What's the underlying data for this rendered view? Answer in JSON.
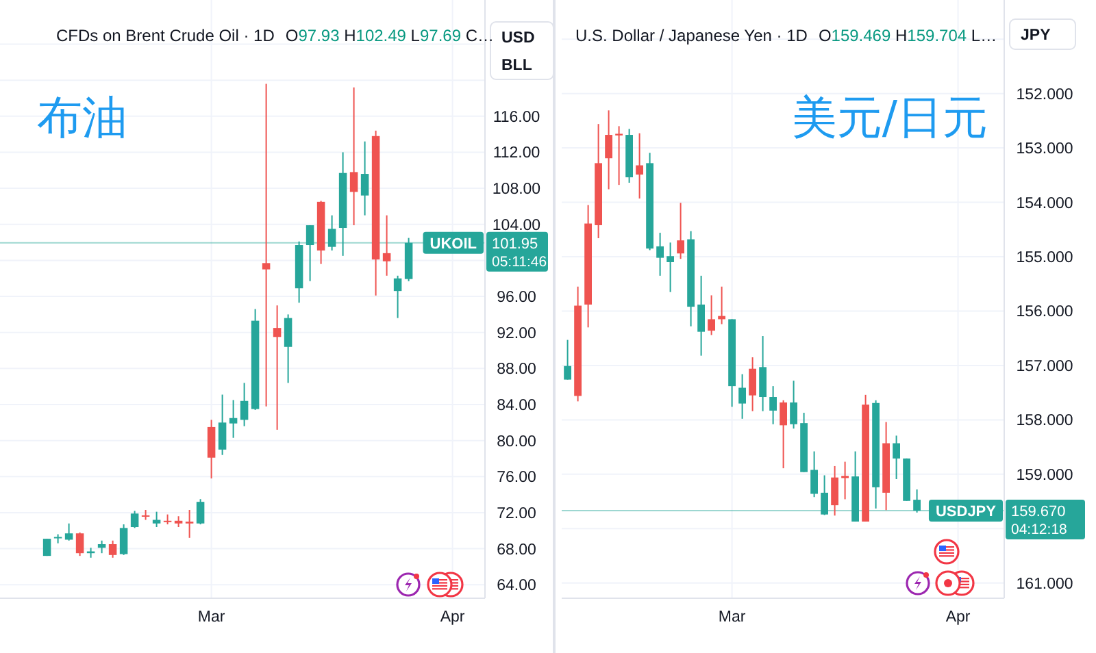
{
  "chart_data": [
    {
      "type": "candlestick",
      "title": "布油",
      "subtitle": "CFDs on Brent Crude Oil · 1D",
      "ylabel": "USD\nBLL",
      "annotations": [
        "O97.93 H102.49 L97.69 C…",
        "101.95",
        "05:11:46"
      ],
      "categories": [
        null,
        null,
        null,
        null,
        null,
        null,
        null,
        null,
        null,
        null,
        null,
        null,
        null,
        null,
        null,
        "Mar",
        null,
        null,
        null,
        null,
        null,
        null,
        null,
        null,
        null,
        null,
        null,
        null,
        null,
        null,
        null,
        null,
        null,
        null,
        null,
        null,
        null,
        "Apr",
        null,
        null
      ],
      "ohlc": [
        [
          67.2,
          69.1,
          67.2,
          69.1
        ],
        [
          69.2,
          69.6,
          68.6,
          69.3
        ],
        [
          69.0,
          70.8,
          68.9,
          69.7
        ],
        [
          69.7,
          69.8,
          67.2,
          67.5
        ],
        [
          67.5,
          68.1,
          67.0,
          67.7
        ],
        [
          68.1,
          68.9,
          67.5,
          68.5
        ],
        [
          68.5,
          68.9,
          67.0,
          67.3
        ],
        [
          67.4,
          70.7,
          67.3,
          70.3
        ],
        [
          70.4,
          72.2,
          70.3,
          71.9
        ],
        [
          71.7,
          72.3,
          71.2,
          71.6
        ],
        [
          70.8,
          72.1,
          70.4,
          71.2
        ],
        [
          71.1,
          71.8,
          70.7,
          71.0
        ],
        [
          71.1,
          71.6,
          70.4,
          70.8
        ],
        [
          71.0,
          72.3,
          69.2,
          70.8
        ],
        [
          70.8,
          73.5,
          70.7,
          73.2
        ],
        [
          81.5,
          82.3,
          75.8,
          78.1
        ],
        [
          79.0,
          85.1,
          78.4,
          82.0
        ],
        [
          81.9,
          84.5,
          80.3,
          82.5
        ],
        [
          82.3,
          86.4,
          81.6,
          84.4
        ],
        [
          83.5,
          94.6,
          83.4,
          93.3
        ],
        [
          99.7,
          119.6,
          83.8,
          99.0
        ],
        [
          92.5,
          95.0,
          81.2,
          91.5
        ],
        [
          90.4,
          94.0,
          86.4,
          93.6
        ],
        [
          96.9,
          102.1,
          95.3,
          101.7
        ],
        [
          101.7,
          103.9,
          97.7,
          103.9
        ],
        [
          106.5,
          106.6,
          99.6,
          101.1
        ],
        [
          101.5,
          105.0,
          101.1,
          103.5
        ],
        [
          103.6,
          112.0,
          100.5,
          109.7
        ],
        [
          109.8,
          119.2,
          103.9,
          107.6
        ],
        [
          107.2,
          113.2,
          105.0,
          109.6
        ],
        [
          113.8,
          114.4,
          96.1,
          100.1
        ],
        [
          100.8,
          105.0,
          98.3,
          99.9
        ],
        [
          96.6,
          98.3,
          93.6,
          98.0
        ],
        [
          97.93,
          102.49,
          97.69,
          101.95
        ],
        null,
        null,
        null,
        null,
        null,
        null
      ],
      "colors": [
        "#26a69a",
        "#26a69a",
        "#26a69a",
        "#ef5350",
        "#26a69a",
        "#26a69a",
        "#ef5350",
        "#26a69a",
        "#26a69a",
        "#ef5350",
        "#26a69a",
        "#ef5350",
        "#ef5350",
        "#ef5350",
        "#26a69a",
        "#ef5350",
        "#26a69a",
        "#26a69a",
        "#26a69a",
        "#26a69a",
        "#ef5350",
        "#ef5350",
        "#26a69a",
        "#26a69a",
        "#26a69a",
        "#ef5350",
        "#26a69a",
        "#26a69a",
        "#ef5350",
        "#26a69a",
        "#ef5350",
        "#ef5350",
        "#26a69a",
        "#26a69a",
        null,
        null,
        null,
        null,
        null,
        null
      ],
      "ylim": [
        62.5,
        128.9
      ],
      "yticks": [
        {
          "value": 64,
          "label": "64.00"
        },
        {
          "value": 68,
          "label": "68.00"
        },
        {
          "value": 72,
          "label": "72.00"
        },
        {
          "value": 76,
          "label": "76.00"
        },
        {
          "value": 80,
          "label": "80.00"
        },
        {
          "value": 84,
          "label": "84.00"
        },
        {
          "value": 88,
          "label": "88.00"
        },
        {
          "value": 92,
          "label": "92.00"
        },
        {
          "value": 96,
          "label": "96.00"
        },
        {
          "value": 100,
          "label": null
        },
        {
          "value": 104,
          "label": "104.00"
        },
        {
          "value": 108,
          "label": "108.00"
        },
        {
          "value": 112,
          "label": "112.00"
        },
        {
          "value": 116,
          "label": "116.00"
        },
        {
          "value": 120,
          "label": null
        },
        {
          "value": 124,
          "label": null
        }
      ],
      "ref_lines": [
        {
          "axis": "y",
          "value": 101.95,
          "label": "UKOIL",
          "color": "#26a69a"
        }
      ],
      "grid": true
    },
    {
      "type": "candlestick",
      "title": "美元/日元",
      "subtitle": "U.S. Dollar / Japanese Yen · 1D",
      "ylabel": "JPY",
      "annotations": [
        "O159.469 H159.704 L…",
        "159.670",
        "04:12:18"
      ],
      "categories": [
        null,
        null,
        null,
        null,
        null,
        null,
        null,
        null,
        null,
        null,
        null,
        null,
        null,
        null,
        null,
        null,
        "Mar",
        null,
        null,
        null,
        null,
        null,
        null,
        null,
        null,
        null,
        null,
        null,
        null,
        null,
        null,
        null,
        null,
        null,
        null,
        null,
        null,
        null,
        "Apr",
        null,
        null,
        null
      ],
      "ohlc": [
        [
          157.01,
          157.26,
          156.53,
          157.26
        ],
        [
          157.56,
          157.66,
          155.55,
          155.9
        ],
        [
          155.88,
          156.3,
          154.05,
          154.39
        ],
        [
          154.42,
          154.66,
          152.56,
          153.28
        ],
        [
          153.19,
          153.76,
          152.31,
          152.76
        ],
        [
          152.77,
          153.68,
          152.6,
          152.74
        ],
        [
          152.76,
          153.64,
          152.65,
          153.54
        ],
        [
          153.49,
          153.93,
          152.73,
          153.32
        ],
        [
          153.28,
          154.88,
          153.09,
          154.85
        ],
        [
          154.81,
          155.35,
          154.56,
          155.02
        ],
        [
          154.99,
          155.65,
          154.74,
          155.1
        ],
        [
          154.94,
          155.04,
          154.01,
          154.7
        ],
        [
          154.68,
          156.28,
          154.53,
          155.92
        ],
        [
          155.88,
          156.82,
          155.35,
          156.38
        ],
        [
          156.36,
          156.44,
          155.71,
          156.15
        ],
        [
          156.15,
          156.24,
          155.55,
          156.09
        ],
        [
          156.15,
          157.76,
          156.15,
          157.38
        ],
        [
          157.41,
          157.98,
          157.16,
          157.7
        ],
        [
          157.55,
          157.84,
          156.85,
          157.06
        ],
        [
          157.03,
          157.84,
          156.46,
          157.58
        ],
        [
          157.58,
          158.08,
          157.38,
          157.83
        ],
        [
          158.1,
          158.89,
          157.64,
          157.68
        ],
        [
          157.68,
          158.16,
          157.28,
          158.08
        ],
        [
          158.06,
          158.96,
          157.87,
          158.96
        ],
        [
          158.92,
          159.42,
          158.58,
          159.36
        ],
        [
          159.34,
          159.75,
          159.02,
          159.74
        ],
        [
          159.57,
          159.76,
          158.85,
          159.06
        ],
        [
          159.07,
          159.46,
          158.77,
          159.03
        ],
        [
          159.04,
          159.87,
          158.58,
          159.87
        ],
        [
          159.87,
          159.87,
          157.54,
          157.72
        ],
        [
          157.69,
          159.63,
          157.64,
          159.24
        ],
        [
          159.34,
          159.66,
          158.04,
          158.43
        ],
        [
          158.43,
          159.09,
          158.29,
          158.71
        ],
        [
          158.71,
          159.49,
          158.71,
          159.49
        ],
        [
          159.469,
          159.704,
          159.28,
          159.67
        ],
        null,
        null,
        null,
        null,
        null,
        null,
        null
      ],
      "colors": [
        "#26a69a",
        "#ef5350",
        "#ef5350",
        "#ef5350",
        "#ef5350",
        "#ef5350",
        "#26a69a",
        "#ef5350",
        "#26a69a",
        "#26a69a",
        "#26a69a",
        "#ef5350",
        "#26a69a",
        "#26a69a",
        "#ef5350",
        "#ef5350",
        "#26a69a",
        "#26a69a",
        "#ef5350",
        "#26a69a",
        "#26a69a",
        "#ef5350",
        "#26a69a",
        "#26a69a",
        "#26a69a",
        "#26a69a",
        "#ef5350",
        "#ef5350",
        "#26a69a",
        "#ef5350",
        "#26a69a",
        "#ef5350",
        "#26a69a",
        "#26a69a",
        "#26a69a",
        null,
        null,
        null,
        null,
        null,
        null,
        null
      ],
      "ylim": [
        161.28,
        150.28
      ],
      "yticks": [
        {
          "value": 151,
          "label": null
        },
        {
          "value": 152,
          "label": "152.000"
        },
        {
          "value": 153,
          "label": "153.000"
        },
        {
          "value": 154,
          "label": "154.000"
        },
        {
          "value": 155,
          "label": "155.000"
        },
        {
          "value": 156,
          "label": "156.000"
        },
        {
          "value": 157,
          "label": "157.000"
        },
        {
          "value": 158,
          "label": "158.000"
        },
        {
          "value": 159,
          "label": "159.000"
        },
        {
          "value": 160,
          "label": null
        },
        {
          "value": 161,
          "label": "161.000"
        }
      ],
      "ref_lines": [
        {
          "axis": "y",
          "value": 159.67,
          "label": "USDJPY",
          "color": "#26a69a"
        }
      ],
      "grid": true
    }
  ]
}
